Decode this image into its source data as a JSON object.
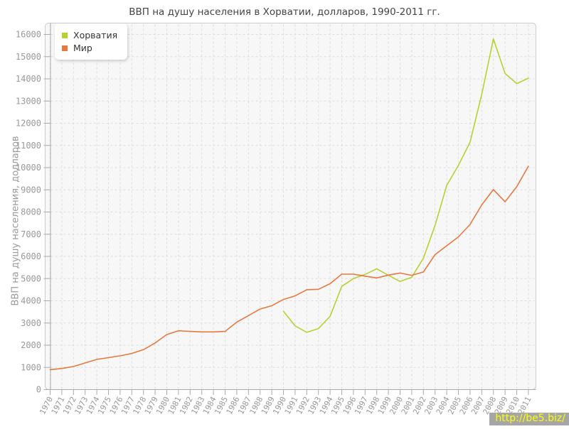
{
  "title": "ВВП на душу населения в Хорватии, долларов, 1990-2011 гг.",
  "watermark": "http://be5.biz/",
  "legend": {
    "items": [
      {
        "label": "Хорватия"
      },
      {
        "label": "Мир"
      }
    ]
  },
  "chart_data": {
    "type": "line",
    "title": "ВВП на душу населения в Хорватии, долларов, 1990-2011 гг.",
    "xlabel": "",
    "ylabel": "ВВП на душу населения, долларов",
    "ylim": [
      0,
      16000
    ],
    "ytick_step": 1000,
    "grid": true,
    "grid_style": "dashed",
    "legend_position": "top-left",
    "plot_bg": "#f7f7f7",
    "grid_color": "#dcdcdc",
    "axis_color": "#aaaaaa",
    "tick_label_color": "#999999",
    "x": [
      1970,
      1971,
      1972,
      1973,
      1974,
      1975,
      1976,
      1977,
      1978,
      1979,
      1980,
      1981,
      1982,
      1983,
      1984,
      1985,
      1986,
      1987,
      1988,
      1989,
      1990,
      1991,
      1992,
      1993,
      1994,
      1995,
      1996,
      1997,
      1998,
      1999,
      2000,
      2001,
      2002,
      2003,
      2004,
      2005,
      2006,
      2007,
      2008,
      2009,
      2010,
      2011
    ],
    "series": [
      {
        "name": "Хорватия",
        "color": "#b8d130",
        "start_year": 1990,
        "values": [
          3530,
          2870,
          2580,
          2750,
          3300,
          4650,
          5000,
          5190,
          5440,
          5150,
          4870,
          5060,
          5920,
          7400,
          9200,
          10100,
          11150,
          13300,
          15800,
          14240,
          13790,
          14030
        ]
      },
      {
        "name": "Мир",
        "color": "#e6793f",
        "start_year": 1970,
        "values": [
          900,
          950,
          1040,
          1200,
          1360,
          1440,
          1520,
          1630,
          1800,
          2100,
          2480,
          2650,
          2620,
          2600,
          2600,
          2620,
          3040,
          3330,
          3630,
          3780,
          4060,
          4220,
          4500,
          4520,
          4770,
          5200,
          5200,
          5110,
          5030,
          5160,
          5250,
          5150,
          5300,
          6080,
          6480,
          6880,
          7440,
          8320,
          9010,
          8460,
          9140,
          10060
        ]
      }
    ]
  }
}
